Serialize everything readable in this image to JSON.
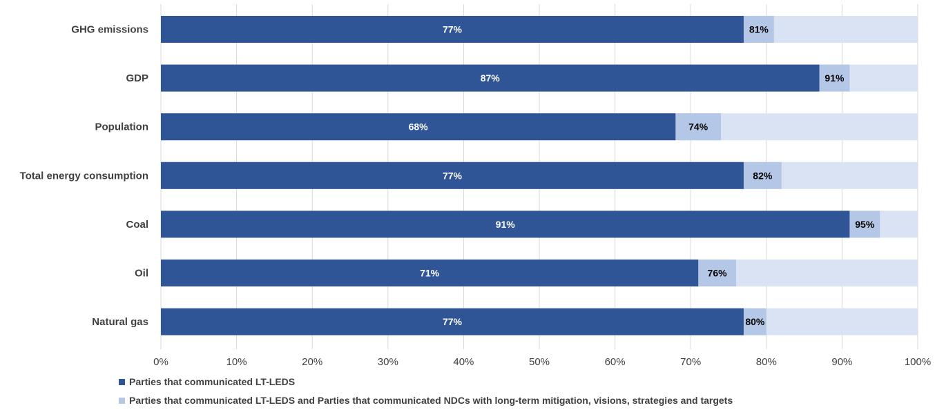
{
  "chart_data": {
    "type": "bar",
    "orientation": "horizontal",
    "stacked": "overlay",
    "categories": [
      "GHG emissions",
      "GDP",
      "Population",
      "Total energy consumption",
      "Coal",
      "Oil",
      "Natural gas"
    ],
    "series": [
      {
        "name": "Parties that communicated LT-LEDS",
        "values": [
          77,
          87,
          68,
          77,
          91,
          71,
          77
        ],
        "labels": [
          "77%",
          "87%",
          "68%",
          "77%",
          "91%",
          "71%",
          "77%"
        ],
        "color": "#2f5597"
      },
      {
        "name": "Parties that communicated LT-LEDS and Parties that communicated NDCs with long-term mitigation, visions, strategies and targets",
        "values": [
          81,
          91,
          74,
          82,
          95,
          76,
          80
        ],
        "labels": [
          "81%",
          "91%",
          "74%",
          "82%",
          "95%",
          "76%",
          "80%"
        ],
        "color": "#b4c7e7"
      }
    ],
    "background_series_color": "#dae3f3",
    "xlim": [
      0,
      100
    ],
    "x_ticks": [
      "0%",
      "10%",
      "20%",
      "30%",
      "40%",
      "50%",
      "60%",
      "70%",
      "80%",
      "90%",
      "100%"
    ],
    "grid": true,
    "legend_position": "bottom",
    "title": "",
    "xlabel": "",
    "ylabel": ""
  }
}
